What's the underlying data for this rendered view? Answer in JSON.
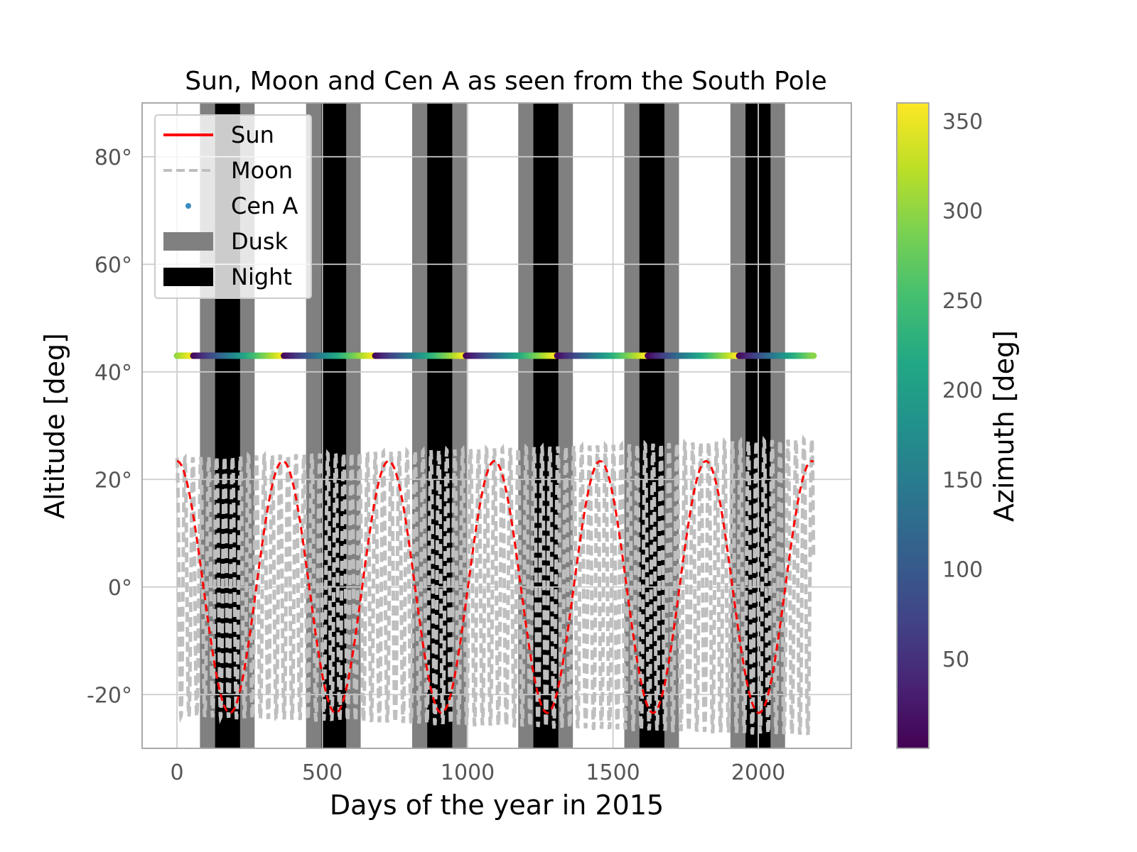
{
  "chart_data": {
    "type": "line",
    "title": "Sun, Moon and Cen A as seen from the South Pole",
    "xlabel": "Days of the year in 2015",
    "ylabel": "Altitude [deg]",
    "xlim": [
      -120,
      2320
    ],
    "ylim": [
      -30,
      90
    ],
    "grid": true,
    "legend_position": "top-left",
    "x_ticks": [
      0,
      500,
      1000,
      1500,
      2000
    ],
    "y_ticks": [
      -20,
      0,
      20,
      40,
      60,
      80
    ],
    "y_tick_labels": [
      "-20°",
      "0°",
      "20°",
      "40°",
      "60°",
      "80°"
    ],
    "legend": [
      {
        "label": "Sun",
        "kind": "line",
        "color": "#ff0000"
      },
      {
        "label": "Moon",
        "kind": "dashed-line",
        "color": "#bfbfbf"
      },
      {
        "label": "Cen A",
        "kind": "point",
        "color": "#3b8bc2"
      },
      {
        "label": "Dusk",
        "kind": "patch",
        "color": "#808080"
      },
      {
        "label": "Night",
        "kind": "patch",
        "color": "#000000"
      }
    ],
    "series": [
      {
        "name": "Sun",
        "style": "dashed",
        "color": "#ff0000",
        "x": [
          0,
          91,
          182,
          273,
          365,
          456,
          547,
          638,
          730,
          821,
          912,
          1003,
          1095,
          1186,
          1277,
          1368,
          1460,
          1551,
          1642,
          1733,
          1825,
          1916,
          2007,
          2098,
          2190
        ],
        "y": [
          23.4,
          0,
          -23.4,
          0,
          23.4,
          0,
          -23.4,
          0,
          23.4,
          0,
          -23.4,
          0,
          23.4,
          0,
          -23.4,
          0,
          23.4,
          0,
          -23.4,
          0,
          23.4,
          0,
          -23.4,
          0,
          23.4
        ]
      },
      {
        "name": "Moon",
        "style": "dashed",
        "color": "#bfbfbf",
        "period_days": 27.3,
        "x_range": [
          0,
          2190
        ],
        "y_amplitude_start": 24,
        "y_amplitude_end": 27.5
      },
      {
        "name": "Cen A",
        "style": "scatter",
        "colormap": "viridis",
        "x_range": [
          0,
          2190
        ],
        "y": 43.0,
        "color_period_days": 313
      }
    ],
    "dusk_intervals": [
      [
        79,
        267
      ],
      [
        444,
        632
      ],
      [
        809,
        997
      ],
      [
        1174,
        1362
      ],
      [
        1539,
        1727
      ],
      [
        1904,
        2092
      ]
    ],
    "night_intervals": [
      [
        131,
        217
      ],
      [
        496,
        582
      ],
      [
        861,
        947
      ],
      [
        1226,
        1312
      ],
      [
        1591,
        1677
      ],
      [
        1956,
        2042
      ]
    ],
    "colorbar": {
      "label": "Azimuth [deg]",
      "range": [
        0,
        360
      ],
      "ticks": [
        50,
        100,
        150,
        200,
        250,
        300,
        350
      ],
      "colormap": "viridis"
    }
  }
}
